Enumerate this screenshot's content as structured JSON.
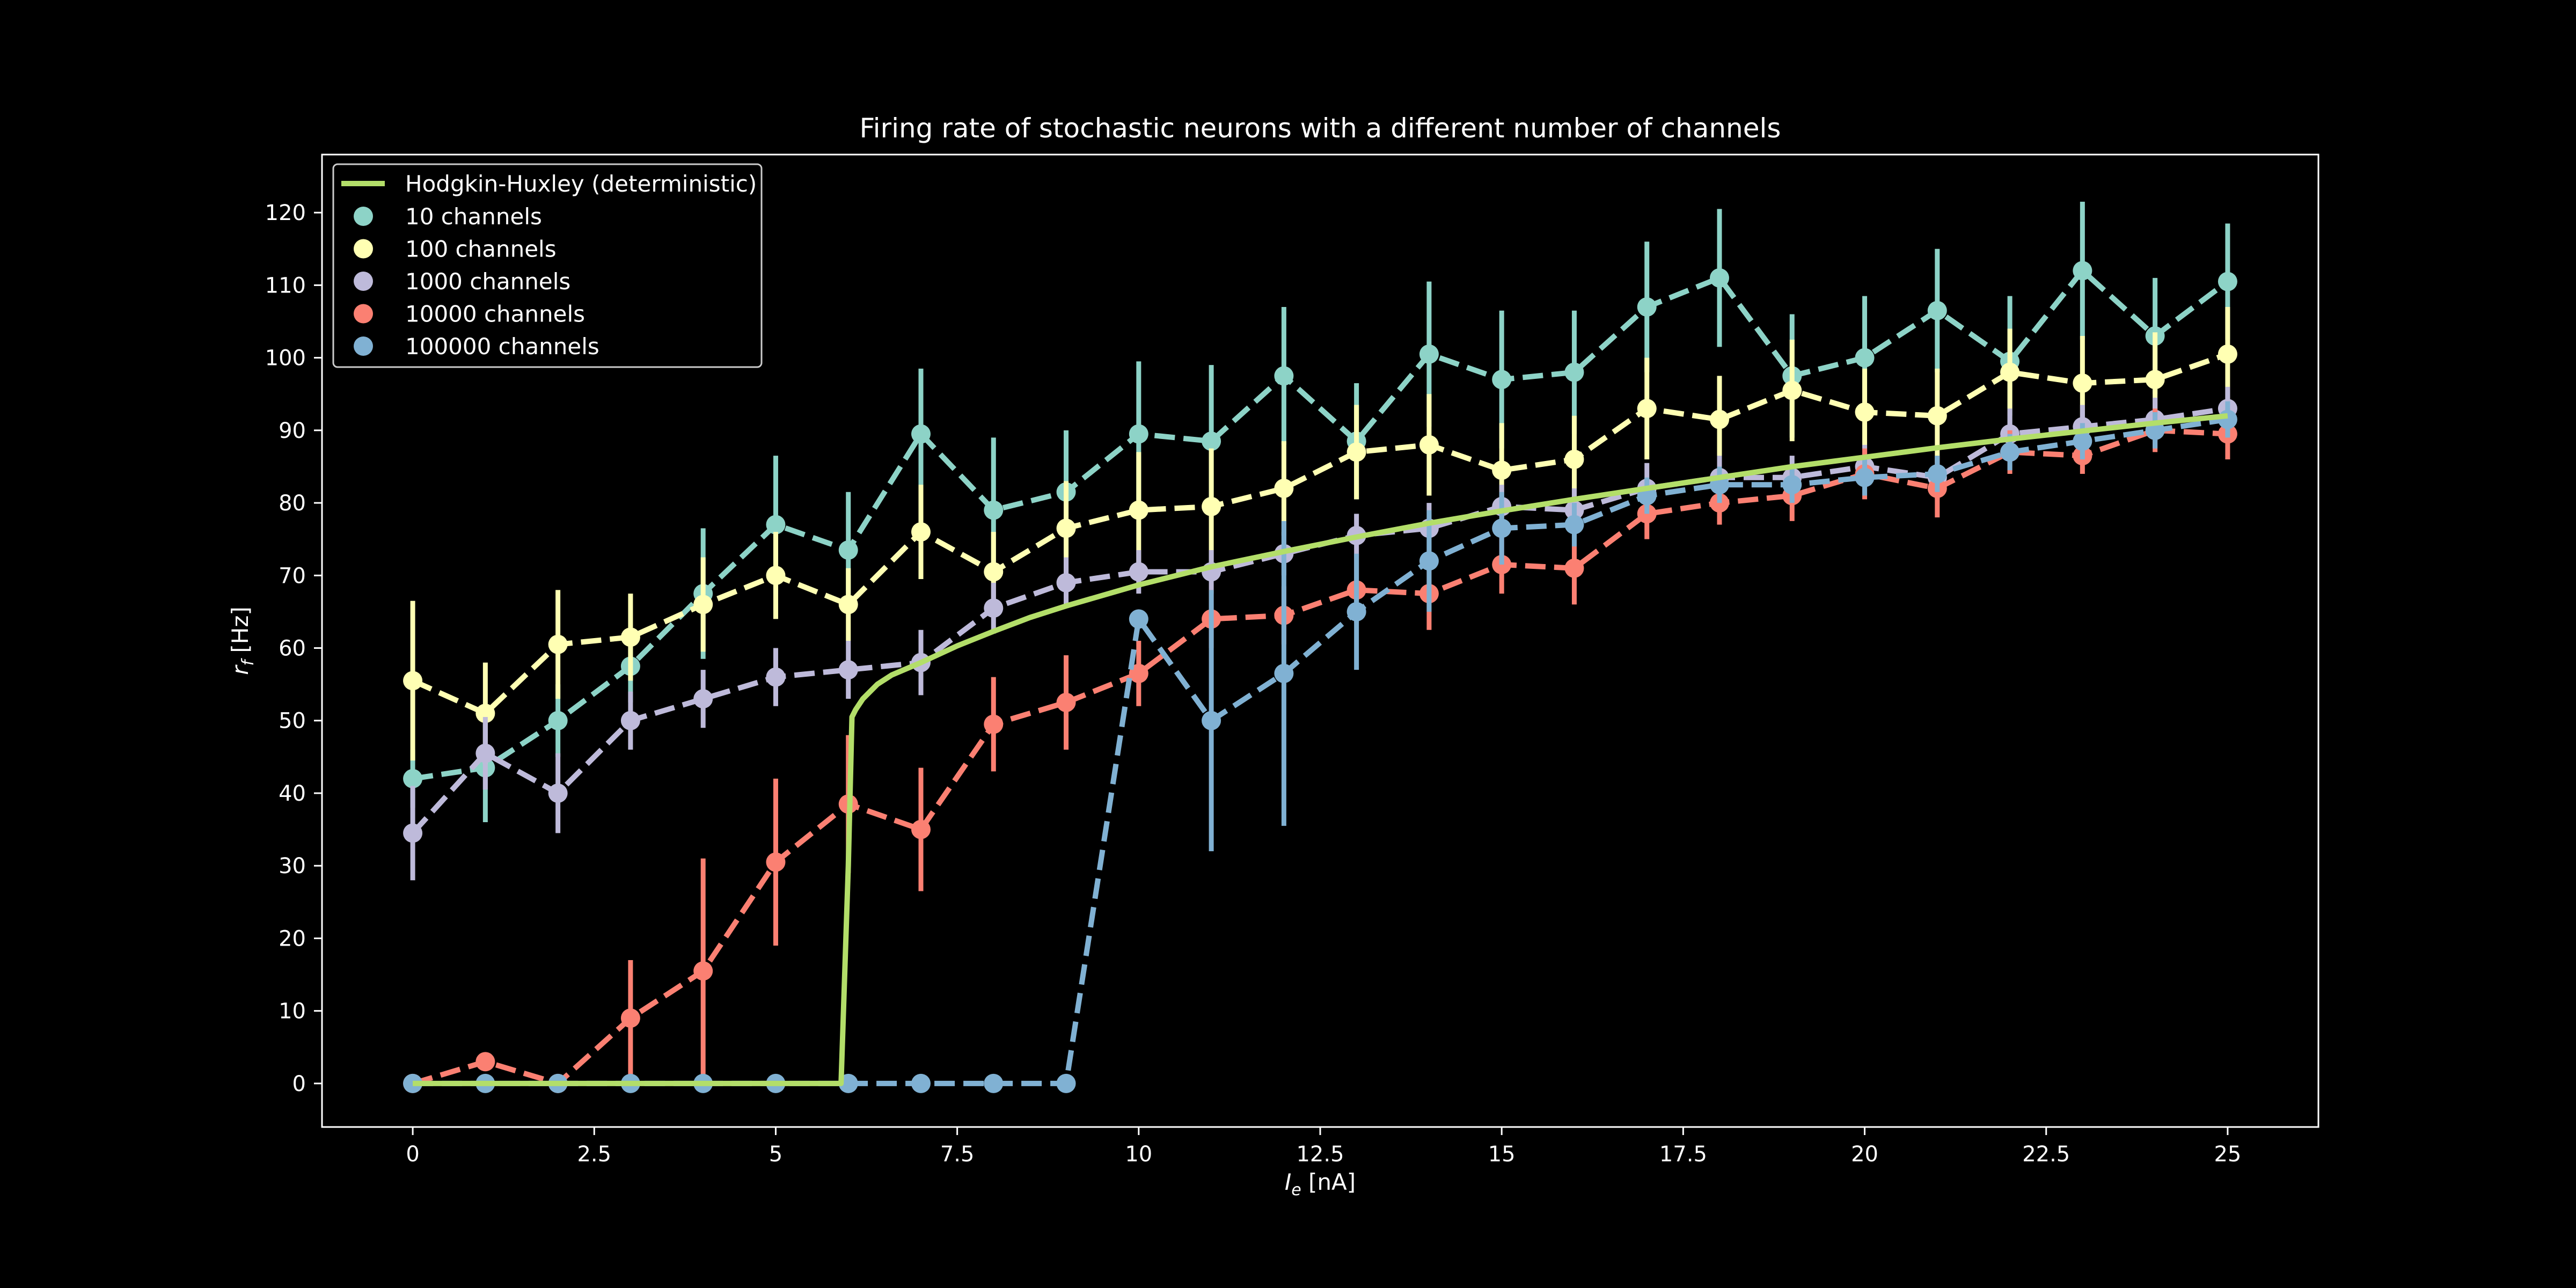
{
  "chart_data": {
    "type": "line",
    "title": "Firing rate of stochastic neurons with a different number of channels",
    "xlabel": "I",
    "xlabel_sub": "e",
    "xlabel_unit": " [nA]",
    "ylabel": "r",
    "ylabel_sub": "f",
    "ylabel_unit": " [Hz]",
    "xlim": [
      -1.25,
      26.25
    ],
    "ylim": [
      -6,
      128
    ],
    "xticks": [
      0,
      2.5,
      5,
      7.5,
      10,
      12.5,
      15,
      17.5,
      20,
      22.5,
      25
    ],
    "xtick_labels": [
      "0",
      "2.5",
      "5",
      "7.5",
      "10",
      "12.5",
      "15",
      "17.5",
      "20",
      "22.5",
      "25"
    ],
    "yticks": [
      0,
      10,
      20,
      30,
      40,
      50,
      60,
      70,
      80,
      90,
      100,
      110,
      120
    ],
    "ytick_labels": [
      "0",
      "10",
      "20",
      "30",
      "40",
      "50",
      "60",
      "70",
      "80",
      "90",
      "100",
      "110",
      "120"
    ],
    "grid": false,
    "legend_position": "top-left",
    "x": [
      0,
      1,
      2,
      3,
      4,
      5,
      6,
      7,
      8,
      9,
      10,
      11,
      12,
      13,
      14,
      15,
      16,
      17,
      18,
      19,
      20,
      21,
      22,
      23,
      24,
      25
    ],
    "deterministic": {
      "name": "Hodgkin-Huxley (deterministic)",
      "color": "#b3de69",
      "x": [
        0,
        5.9,
        6.0,
        6.05,
        6.1,
        6.2,
        6.4,
        6.6,
        7,
        7.5,
        8,
        8.5,
        9,
        10,
        11,
        12,
        13,
        14,
        15,
        16,
        17,
        18,
        19,
        20,
        21,
        22,
        23,
        24,
        25
      ],
      "y": [
        0,
        0,
        30,
        50.5,
        51.5,
        53,
        55,
        56.3,
        58,
        60.3,
        62.3,
        64.2,
        65.8,
        68.7,
        71.2,
        73.3,
        75.3,
        77.2,
        78.9,
        80.5,
        82,
        83.5,
        85,
        86.3,
        87.6,
        88.8,
        89.9,
        91,
        92
      ]
    },
    "series": [
      {
        "name": "10 channels",
        "color": "#8dd3c7",
        "values": [
          42,
          43.5,
          50,
          57.5,
          67.5,
          77,
          73.5,
          89.5,
          79,
          81.5,
          89.5,
          88.5,
          97.5,
          88.5,
          100.5,
          97,
          98,
          107,
          111,
          97.5,
          100,
          106.5,
          99.5,
          112,
          103,
          110.5
        ],
        "errors": [
          4,
          7.5,
          5,
          5,
          9,
          9.5,
          8,
          9,
          10,
          8.5,
          10,
          10.5,
          9.5,
          8,
          10,
          9.5,
          8.5,
          9,
          9.5,
          8.5,
          8.5,
          8.5,
          9,
          9.5,
          8,
          8
        ]
      },
      {
        "name": "100 channels",
        "color": "#ffffb3",
        "values": [
          55.5,
          51,
          60.5,
          61.5,
          66,
          70,
          66,
          76,
          70.5,
          76.5,
          79,
          79.5,
          82,
          87,
          88,
          84.5,
          86,
          93,
          91.5,
          95.5,
          92.5,
          92,
          98,
          96.5,
          97,
          100.5
        ],
        "errors": [
          11,
          7,
          7.5,
          6,
          6.5,
          6,
          5,
          6.5,
          5.5,
          6.5,
          8,
          8,
          6.5,
          6.5,
          7,
          6.5,
          6,
          7,
          6,
          7,
          6,
          6.5,
          6,
          6.5,
          6.5,
          6.5
        ]
      },
      {
        "name": "1000 channels",
        "color": "#bebada",
        "values": [
          34.5,
          45.5,
          40,
          50,
          53,
          56,
          57,
          58,
          65.5,
          69,
          70.5,
          70.5,
          73,
          75.5,
          76.5,
          79.5,
          79,
          82,
          83.5,
          83.5,
          85,
          83.5,
          89.5,
          90.5,
          91.5,
          93
        ],
        "errors": [
          6.5,
          5,
          5.5,
          4,
          4,
          4,
          4,
          4.5,
          3.5,
          3.5,
          3,
          3,
          3,
          3,
          3.5,
          3,
          3,
          3.5,
          3,
          3,
          3,
          3,
          3.5,
          3,
          3,
          3
        ]
      },
      {
        "name": "10000 channels",
        "color": "#fb8072",
        "values": [
          0,
          3,
          0,
          9,
          15.5,
          30.5,
          38.5,
          35,
          49.5,
          52.5,
          56.5,
          64,
          64.5,
          68,
          67.5,
          71.5,
          71,
          78.5,
          80,
          81,
          84,
          82,
          87,
          86.5,
          90,
          89.5
        ],
        "errors": [
          0,
          0,
          0,
          8,
          15.5,
          11.5,
          9.5,
          8.5,
          6.5,
          6.5,
          4.5,
          4,
          4,
          4.5,
          5,
          4,
          5,
          3.5,
          3,
          3.5,
          3.5,
          4,
          3,
          2.5,
          3,
          3.5
        ]
      },
      {
        "name": "100000 channels",
        "color": "#80b1d3",
        "values": [
          0,
          0,
          0,
          0,
          0,
          0,
          0,
          0,
          0,
          0,
          64,
          50,
          56.5,
          65,
          72,
          76.5,
          77,
          81,
          82.5,
          82.5,
          83.5,
          84,
          87,
          88.5,
          90,
          91.5
        ],
        "errors": [
          0,
          0,
          0,
          0,
          0,
          0,
          0,
          0,
          0,
          0,
          0,
          18,
          21,
          8,
          7,
          5,
          3,
          2.5,
          2.5,
          2.5,
          2.5,
          2.5,
          2.5,
          2.5,
          2.5,
          2.5
        ]
      }
    ]
  }
}
